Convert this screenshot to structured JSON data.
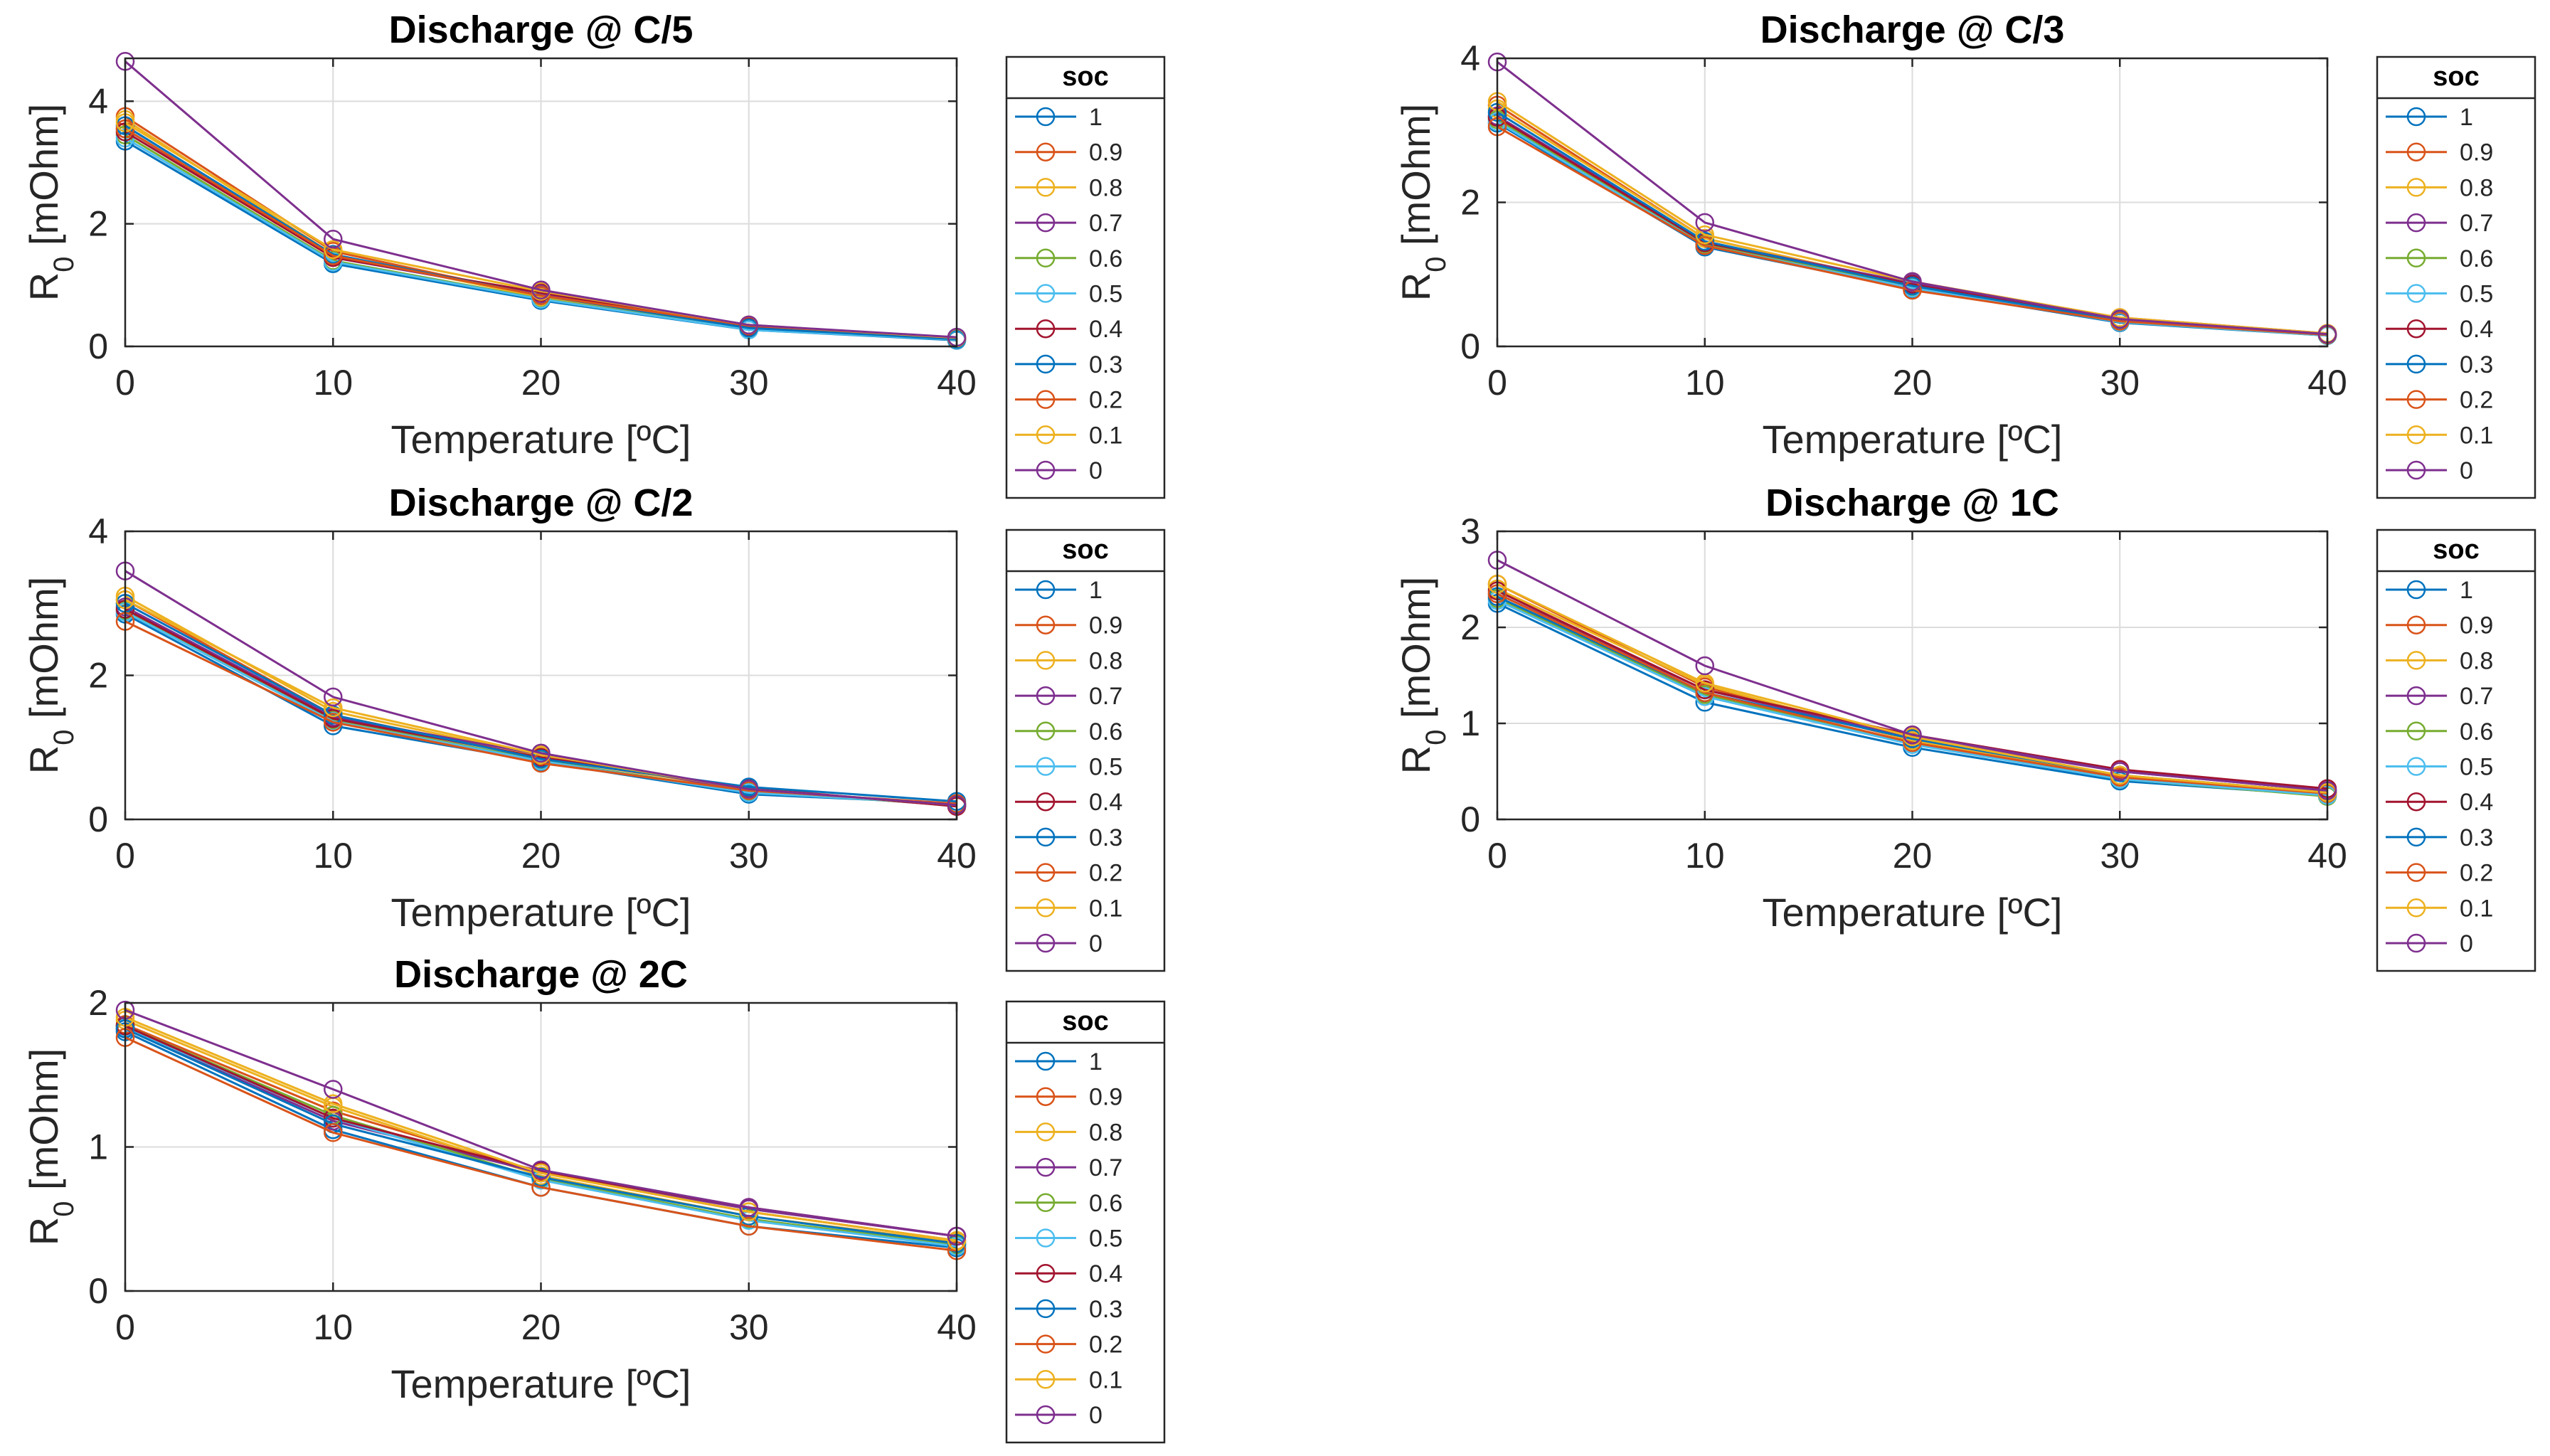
{
  "colors": {
    "series": [
      "#0072BD",
      "#D95319",
      "#EDB120",
      "#7E2F8E",
      "#77AC30",
      "#4DBEEE",
      "#A2142F",
      "#0072BD",
      "#D95319",
      "#EDB120",
      "#7E2F8E"
    ],
    "grid": "#dcdcdc",
    "axis": "#262626"
  },
  "chart_data": [
    {
      "type": "line",
      "title": "Discharge @ C/5",
      "xlabel": "Temperature [ºC]",
      "ylabel": "R0 [mOhm]",
      "xlim": [
        0,
        40
      ],
      "ylim": [
        0,
        4.7
      ],
      "xticks": [
        0,
        10,
        20,
        30,
        40
      ],
      "yticks": [
        0,
        2,
        4
      ],
      "grid": true,
      "legend": {
        "title": "soc",
        "placement": "outside-right"
      },
      "x": [
        0,
        10,
        20,
        30,
        40
      ],
      "series": [
        {
          "name": "1",
          "values": [
            3.35,
            1.35,
            0.75,
            0.27,
            0.1
          ]
        },
        {
          "name": "0.9",
          "values": [
            3.75,
            1.55,
            0.82,
            0.33,
            0.13
          ]
        },
        {
          "name": "0.8",
          "values": [
            3.7,
            1.5,
            0.8,
            0.3,
            0.12
          ]
        },
        {
          "name": "0.7",
          "values": [
            3.55,
            1.45,
            0.85,
            0.3,
            0.12
          ]
        },
        {
          "name": "0.6",
          "values": [
            3.45,
            1.4,
            0.78,
            0.28,
            0.11
          ]
        },
        {
          "name": "0.5",
          "values": [
            3.4,
            1.38,
            0.77,
            0.27,
            0.11
          ]
        },
        {
          "name": "0.4",
          "values": [
            3.5,
            1.45,
            0.88,
            0.32,
            0.13
          ]
        },
        {
          "name": "0.3",
          "values": [
            3.6,
            1.5,
            0.83,
            0.3,
            0.12
          ]
        },
        {
          "name": "0.2",
          "values": [
            3.55,
            1.48,
            0.83,
            0.34,
            0.14
          ]
        },
        {
          "name": "0.1",
          "values": [
            3.65,
            1.58,
            0.9,
            0.35,
            0.14
          ]
        },
        {
          "name": "0",
          "values": [
            4.65,
            1.75,
            0.92,
            0.35,
            0.15
          ]
        }
      ]
    },
    {
      "type": "line",
      "title": "Discharge @ C/3",
      "xlabel": "Temperature [ºC]",
      "ylabel": "R0 [mOhm]",
      "xlim": [
        0,
        40
      ],
      "ylim": [
        0,
        4
      ],
      "xticks": [
        0,
        10,
        20,
        30,
        40
      ],
      "yticks": [
        0,
        2,
        4
      ],
      "grid": true,
      "legend": {
        "title": "soc",
        "placement": "outside-right"
      },
      "x": [
        0,
        10,
        20,
        30,
        40
      ],
      "series": [
        {
          "name": "1",
          "values": [
            3.1,
            1.38,
            0.8,
            0.33,
            0.15
          ]
        },
        {
          "name": "0.9",
          "values": [
            3.35,
            1.5,
            0.85,
            0.4,
            0.18
          ]
        },
        {
          "name": "0.8",
          "values": [
            3.3,
            1.5,
            0.85,
            0.38,
            0.17
          ]
        },
        {
          "name": "0.7",
          "values": [
            3.2,
            1.45,
            0.88,
            0.36,
            0.16
          ]
        },
        {
          "name": "0.6",
          "values": [
            3.15,
            1.42,
            0.82,
            0.34,
            0.15
          ]
        },
        {
          "name": "0.5",
          "values": [
            3.12,
            1.4,
            0.81,
            0.34,
            0.15
          ]
        },
        {
          "name": "0.4",
          "values": [
            3.18,
            1.44,
            0.86,
            0.37,
            0.17
          ]
        },
        {
          "name": "0.3",
          "values": [
            3.25,
            1.46,
            0.84,
            0.36,
            0.16
          ]
        },
        {
          "name": "0.2",
          "values": [
            3.05,
            1.4,
            0.78,
            0.35,
            0.16
          ]
        },
        {
          "name": "0.1",
          "values": [
            3.4,
            1.55,
            0.9,
            0.4,
            0.18
          ]
        },
        {
          "name": "0",
          "values": [
            3.95,
            1.72,
            0.9,
            0.38,
            0.17
          ]
        }
      ]
    },
    {
      "type": "line",
      "title": "Discharge @ C/2",
      "xlabel": "Temperature [ºC]",
      "ylabel": "R0 [mOhm]",
      "xlim": [
        0,
        40
      ],
      "ylim": [
        0,
        4
      ],
      "xticks": [
        0,
        10,
        20,
        30,
        40
      ],
      "yticks": [
        0,
        2,
        4
      ],
      "grid": true,
      "legend": {
        "title": "soc",
        "placement": "outside-right"
      },
      "x": [
        0,
        10,
        20,
        30,
        40
      ],
      "series": [
        {
          "name": "1",
          "values": [
            2.85,
            1.3,
            0.8,
            0.35,
            0.22
          ]
        },
        {
          "name": "0.9",
          "values": [
            3.05,
            1.45,
            0.85,
            0.42,
            0.2
          ]
        },
        {
          "name": "0.8",
          "values": [
            3.1,
            1.5,
            0.88,
            0.4,
            0.2
          ]
        },
        {
          "name": "0.7",
          "values": [
            2.95,
            1.42,
            0.9,
            0.4,
            0.19
          ]
        },
        {
          "name": "0.6",
          "values": [
            2.9,
            1.38,
            0.82,
            0.38,
            0.2
          ]
        },
        {
          "name": "0.5",
          "values": [
            2.88,
            1.36,
            0.81,
            0.37,
            0.21
          ]
        },
        {
          "name": "0.4",
          "values": [
            2.92,
            1.4,
            0.86,
            0.44,
            0.18
          ]
        },
        {
          "name": "0.3",
          "values": [
            3.0,
            1.45,
            0.84,
            0.45,
            0.25
          ]
        },
        {
          "name": "0.2",
          "values": [
            2.75,
            1.35,
            0.78,
            0.4,
            0.22
          ]
        },
        {
          "name": "0.1",
          "values": [
            3.05,
            1.55,
            0.9,
            0.42,
            0.2
          ]
        },
        {
          "name": "0",
          "values": [
            3.45,
            1.7,
            0.92,
            0.42,
            0.2
          ]
        }
      ]
    },
    {
      "type": "line",
      "title": "Discharge @ 1C",
      "xlabel": "Temperature [ºC]",
      "ylabel": "R0 [mOhm]",
      "xlim": [
        0,
        40
      ],
      "ylim": [
        0,
        3
      ],
      "xticks": [
        0,
        10,
        20,
        30,
        40
      ],
      "yticks": [
        0,
        1,
        2,
        3
      ],
      "grid": true,
      "legend": {
        "title": "soc",
        "placement": "outside-right"
      },
      "x": [
        0,
        10,
        20,
        30,
        40
      ],
      "series": [
        {
          "name": "1",
          "values": [
            2.25,
            1.22,
            0.75,
            0.4,
            0.25
          ]
        },
        {
          "name": "0.9",
          "values": [
            2.45,
            1.38,
            0.82,
            0.45,
            0.28
          ]
        },
        {
          "name": "0.8",
          "values": [
            2.4,
            1.4,
            0.82,
            0.44,
            0.27
          ]
        },
        {
          "name": "0.7",
          "values": [
            2.35,
            1.35,
            0.85,
            0.5,
            0.3
          ]
        },
        {
          "name": "0.6",
          "values": [
            2.3,
            1.3,
            0.8,
            0.42,
            0.24
          ]
        },
        {
          "name": "0.5",
          "values": [
            2.28,
            1.28,
            0.78,
            0.42,
            0.25
          ]
        },
        {
          "name": "0.4",
          "values": [
            2.38,
            1.35,
            0.88,
            0.52,
            0.32
          ]
        },
        {
          "name": "0.3",
          "values": [
            2.32,
            1.32,
            0.84,
            0.46,
            0.28
          ]
        },
        {
          "name": "0.2",
          "values": [
            2.35,
            1.32,
            0.8,
            0.44,
            0.27
          ]
        },
        {
          "name": "0.1",
          "values": [
            2.45,
            1.42,
            0.86,
            0.46,
            0.28
          ]
        },
        {
          "name": "0",
          "values": [
            2.7,
            1.6,
            0.88,
            0.5,
            0.3
          ]
        }
      ]
    },
    {
      "type": "line",
      "title": "Discharge @ 2C",
      "xlabel": "Temperature [ºC]",
      "ylabel": "R0 [mOhm]",
      "xlim": [
        0,
        40
      ],
      "ylim": [
        0,
        2
      ],
      "xticks": [
        0,
        10,
        20,
        30,
        40
      ],
      "yticks": [
        0,
        1,
        2
      ],
      "grid": true,
      "legend": {
        "title": "soc",
        "placement": "outside-right"
      },
      "x": [
        0,
        10,
        20,
        30,
        40
      ],
      "series": [
        {
          "name": "1",
          "values": [
            1.8,
            1.12,
            0.72,
            0.45,
            0.3
          ]
        },
        {
          "name": "0.9",
          "values": [
            1.85,
            1.25,
            0.82,
            0.55,
            0.35
          ]
        },
        {
          "name": "0.8",
          "values": [
            1.88,
            1.28,
            0.8,
            0.52,
            0.34
          ]
        },
        {
          "name": "0.7",
          "values": [
            1.82,
            1.18,
            0.82,
            0.57,
            0.38
          ]
        },
        {
          "name": "0.6",
          "values": [
            1.84,
            1.22,
            0.78,
            0.5,
            0.32
          ]
        },
        {
          "name": "0.5",
          "values": [
            1.83,
            1.2,
            0.77,
            0.49,
            0.31
          ]
        },
        {
          "name": "0.4",
          "values": [
            1.84,
            1.2,
            0.83,
            0.58,
            0.38
          ]
        },
        {
          "name": "0.3",
          "values": [
            1.82,
            1.16,
            0.79,
            0.52,
            0.33
          ]
        },
        {
          "name": "0.2",
          "values": [
            1.76,
            1.1,
            0.72,
            0.45,
            0.28
          ]
        },
        {
          "name": "0.1",
          "values": [
            1.9,
            1.3,
            0.82,
            0.55,
            0.35
          ]
        },
        {
          "name": "0",
          "values": [
            1.95,
            1.4,
            0.84,
            0.58,
            0.38
          ]
        }
      ]
    }
  ]
}
